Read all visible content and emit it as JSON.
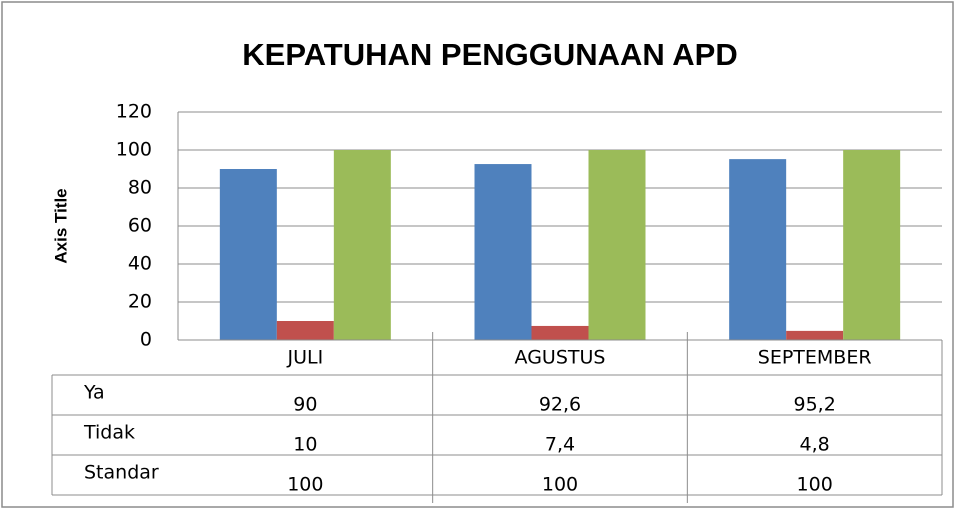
{
  "chart_data": {
    "type": "bar",
    "title": "KEPATUHAN PENGGUNAAN APD",
    "y_label": "Axis Title",
    "categories": [
      "JULI",
      "AGUSTUS",
      "SEPTEMBER"
    ],
    "series": [
      {
        "name": "Ya",
        "color": "#4f81bd",
        "values": [
          90,
          92.6,
          95.2
        ],
        "value_labels": [
          "90",
          "92,6",
          "95,2"
        ]
      },
      {
        "name": "Tidak",
        "color": "#c0504d",
        "values": [
          10,
          7.4,
          4.8
        ],
        "value_labels": [
          "10",
          "7,4",
          "4,8"
        ]
      },
      {
        "name": "Standar",
        "color": "#9bbb59",
        "values": [
          100,
          100,
          100
        ]
      }
    ],
    "ylim": [
      0,
      120
    ],
    "yticks": [
      0,
      20,
      40,
      60,
      80,
      100,
      120
    ],
    "grid": true,
    "data_table": true
  }
}
